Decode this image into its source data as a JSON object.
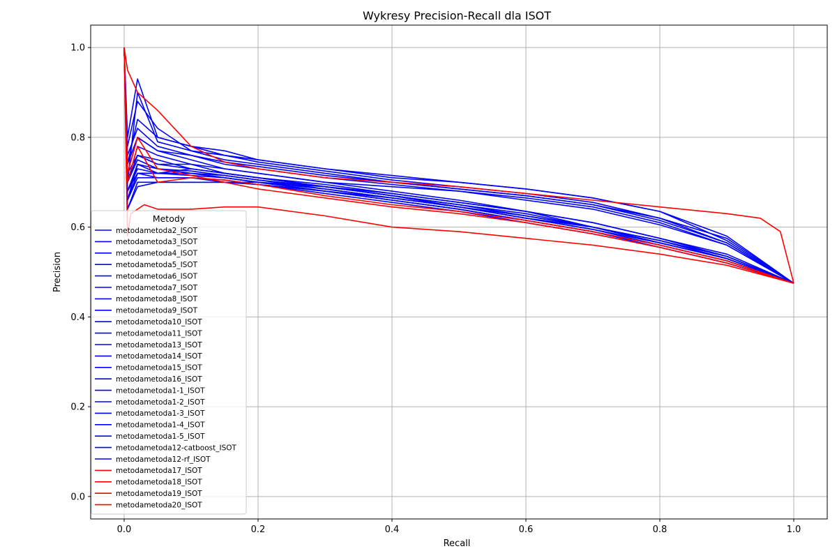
{
  "chart_data": {
    "type": "line",
    "title": "Wykresy Precision-Recall dla ISOT",
    "xlabel": "Recall",
    "ylabel": "Precision",
    "xlim": [
      -0.05,
      1.05
    ],
    "ylim": [
      -0.05,
      1.05
    ],
    "xticks": [
      0.0,
      0.2,
      0.4,
      0.6,
      0.8,
      1.0
    ],
    "yticks": [
      0.0,
      0.2,
      0.4,
      0.6,
      0.8,
      1.0
    ],
    "xtick_labels": [
      "0.0",
      "0.2",
      "0.4",
      "0.6",
      "0.8",
      "1.0"
    ],
    "ytick_labels": [
      "0.0",
      "0.2",
      "0.4",
      "0.6",
      "0.8",
      "1.0"
    ],
    "grid": true,
    "legend_title": "Metody",
    "legend_location": "lower left",
    "colors": {
      "blue": "#0000ff",
      "red": "#ff0000",
      "grid": "#b0b0b0"
    },
    "series": [
      {
        "name": "metodametoda2_ISOT",
        "color": "blue",
        "x": [
          0,
          0.005,
          0.02,
          0.05,
          0.1,
          0.15,
          0.2,
          0.3,
          0.4,
          0.5,
          0.6,
          0.7,
          0.8,
          0.9,
          1.0
        ],
        "y": [
          1.0,
          0.7,
          0.78,
          0.76,
          0.74,
          0.72,
          0.71,
          0.69,
          0.67,
          0.65,
          0.63,
          0.6,
          0.57,
          0.53,
          0.475
        ]
      },
      {
        "name": "metodametoda3_ISOT",
        "color": "blue",
        "x": [
          0,
          0.005,
          0.02,
          0.05,
          0.1,
          0.15,
          0.2,
          0.3,
          0.4,
          0.5,
          0.6,
          0.7,
          0.8,
          0.9,
          1.0
        ],
        "y": [
          1.0,
          0.66,
          0.74,
          0.72,
          0.73,
          0.72,
          0.71,
          0.69,
          0.67,
          0.645,
          0.62,
          0.6,
          0.565,
          0.53,
          0.475
        ]
      },
      {
        "name": "metodametoda4_ISOT",
        "color": "blue",
        "x": [
          0,
          0.005,
          0.02,
          0.05,
          0.1,
          0.15,
          0.2,
          0.3,
          0.4,
          0.5,
          0.6,
          0.7,
          0.8,
          0.9,
          1.0
        ],
        "y": [
          1.0,
          0.72,
          0.8,
          0.77,
          0.75,
          0.73,
          0.72,
          0.7,
          0.68,
          0.66,
          0.635,
          0.6,
          0.57,
          0.535,
          0.475
        ]
      },
      {
        "name": "metodametoda5_ISOT",
        "color": "blue",
        "x": [
          0,
          0.005,
          0.02,
          0.05,
          0.1,
          0.15,
          0.2,
          0.3,
          0.4,
          0.5,
          0.6,
          0.7,
          0.8,
          0.9,
          1.0
        ],
        "y": [
          1.0,
          0.68,
          0.72,
          0.71,
          0.71,
          0.7,
          0.7,
          0.68,
          0.665,
          0.645,
          0.62,
          0.595,
          0.565,
          0.53,
          0.475
        ]
      },
      {
        "name": "metodametoda6_ISOT",
        "color": "blue",
        "x": [
          0,
          0.005,
          0.02,
          0.05,
          0.1,
          0.15,
          0.2,
          0.3,
          0.4,
          0.5,
          0.6,
          0.7,
          0.8,
          0.9,
          1.0
        ],
        "y": [
          1.0,
          0.74,
          0.84,
          0.8,
          0.78,
          0.76,
          0.75,
          0.73,
          0.71,
          0.7,
          0.685,
          0.665,
          0.635,
          0.57,
          0.475
        ]
      },
      {
        "name": "metodametoda7_ISOT",
        "color": "blue",
        "x": [
          0,
          0.005,
          0.02,
          0.05,
          0.1,
          0.15,
          0.2,
          0.3,
          0.4,
          0.5,
          0.6,
          0.7,
          0.8,
          0.9,
          1.0
        ],
        "y": [
          1.0,
          0.7,
          0.76,
          0.74,
          0.74,
          0.73,
          0.72,
          0.7,
          0.69,
          0.68,
          0.665,
          0.645,
          0.61,
          0.56,
          0.475
        ]
      },
      {
        "name": "metodametoda8_ISOT",
        "color": "blue",
        "x": [
          0,
          0.005,
          0.02,
          0.05,
          0.1,
          0.15,
          0.2,
          0.3,
          0.4,
          0.5,
          0.6,
          0.7,
          0.8,
          0.9,
          1.0
        ],
        "y": [
          1.0,
          0.78,
          0.88,
          0.82,
          0.77,
          0.75,
          0.74,
          0.72,
          0.7,
          0.685,
          0.67,
          0.65,
          0.62,
          0.575,
          0.475
        ]
      },
      {
        "name": "metodametoda9_ISOT",
        "color": "blue",
        "x": [
          0,
          0.005,
          0.02,
          0.05,
          0.1,
          0.15,
          0.2,
          0.3,
          0.4,
          0.5,
          0.6,
          0.7,
          0.8,
          0.9,
          1.0
        ],
        "y": [
          1.0,
          0.68,
          0.74,
          0.73,
          0.72,
          0.71,
          0.7,
          0.69,
          0.67,
          0.65,
          0.625,
          0.6,
          0.57,
          0.535,
          0.475
        ]
      },
      {
        "name": "metodametoda10_ISOT",
        "color": "blue",
        "x": [
          0,
          0.005,
          0.02,
          0.05,
          0.1,
          0.15,
          0.2,
          0.3,
          0.4,
          0.5,
          0.6,
          0.7,
          0.8,
          0.9,
          1.0
        ],
        "y": [
          1.0,
          0.64,
          0.7,
          0.7,
          0.7,
          0.7,
          0.695,
          0.68,
          0.66,
          0.64,
          0.615,
          0.59,
          0.56,
          0.525,
          0.475
        ]
      },
      {
        "name": "metodametoda11_ISOT",
        "color": "blue",
        "x": [
          0,
          0.005,
          0.02,
          0.05,
          0.1,
          0.15,
          0.2,
          0.3,
          0.4,
          0.5,
          0.6,
          0.7,
          0.8,
          0.9,
          1.0
        ],
        "y": [
          1.0,
          0.76,
          0.82,
          0.78,
          0.76,
          0.74,
          0.73,
          0.71,
          0.695,
          0.68,
          0.66,
          0.64,
          0.605,
          0.56,
          0.475
        ]
      },
      {
        "name": "metodametoda13_ISOT",
        "color": "blue",
        "x": [
          0,
          0.005,
          0.02,
          0.05,
          0.1,
          0.15,
          0.2,
          0.3,
          0.4,
          0.5,
          0.6,
          0.7,
          0.8,
          0.9,
          1.0
        ],
        "y": [
          1.0,
          0.7,
          0.9,
          0.79,
          0.77,
          0.76,
          0.745,
          0.725,
          0.705,
          0.69,
          0.675,
          0.655,
          0.62,
          0.565,
          0.475
        ]
      },
      {
        "name": "metodametoda14_ISOT",
        "color": "blue",
        "x": [
          0,
          0.005,
          0.02,
          0.05,
          0.1,
          0.15,
          0.2,
          0.3,
          0.4,
          0.5,
          0.6,
          0.7,
          0.8,
          0.9,
          1.0
        ],
        "y": [
          1.0,
          0.72,
          0.76,
          0.75,
          0.73,
          0.72,
          0.71,
          0.69,
          0.675,
          0.655,
          0.635,
          0.61,
          0.575,
          0.535,
          0.475
        ]
      },
      {
        "name": "metodametoda15_ISOT",
        "color": "blue",
        "x": [
          0,
          0.005,
          0.02,
          0.05,
          0.1,
          0.15,
          0.2,
          0.3,
          0.4,
          0.5,
          0.6,
          0.7,
          0.8,
          0.9,
          1.0
        ],
        "y": [
          1.0,
          0.66,
          0.72,
          0.72,
          0.72,
          0.715,
          0.705,
          0.685,
          0.665,
          0.645,
          0.625,
          0.6,
          0.565,
          0.53,
          0.475
        ]
      },
      {
        "name": "metodametoda16_ISOT",
        "color": "blue",
        "x": [
          0,
          0.005,
          0.02,
          0.05,
          0.1,
          0.15,
          0.2,
          0.3,
          0.4,
          0.5,
          0.6,
          0.7,
          0.8,
          0.9,
          1.0
        ],
        "y": [
          1.0,
          0.74,
          0.8,
          0.77,
          0.76,
          0.745,
          0.735,
          0.715,
          0.7,
          0.685,
          0.67,
          0.65,
          0.615,
          0.565,
          0.475
        ]
      },
      {
        "name": "metodametoda1-1_ISOT",
        "color": "blue",
        "x": [
          0,
          0.005,
          0.02,
          0.05,
          0.1,
          0.15,
          0.2,
          0.3,
          0.4,
          0.5,
          0.6,
          0.7,
          0.8,
          0.9,
          1.0
        ],
        "y": [
          1.0,
          0.64,
          0.69,
          0.7,
          0.7,
          0.7,
          0.695,
          0.675,
          0.655,
          0.635,
          0.61,
          0.585,
          0.555,
          0.52,
          0.475
        ]
      },
      {
        "name": "metodametoda1-2_ISOT",
        "color": "blue",
        "x": [
          0,
          0.005,
          0.02,
          0.05,
          0.1,
          0.15,
          0.2,
          0.3,
          0.4,
          0.5,
          0.6,
          0.7,
          0.8,
          0.9,
          1.0
        ],
        "y": [
          1.0,
          0.66,
          0.72,
          0.72,
          0.715,
          0.71,
          0.7,
          0.68,
          0.66,
          0.64,
          0.615,
          0.59,
          0.56,
          0.525,
          0.475
        ]
      },
      {
        "name": "metodametoda1-3_ISOT",
        "color": "blue",
        "x": [
          0,
          0.005,
          0.02,
          0.05,
          0.1,
          0.15,
          0.2,
          0.3,
          0.4,
          0.5,
          0.6,
          0.7,
          0.8,
          0.9,
          1.0
        ],
        "y": [
          1.0,
          0.68,
          0.73,
          0.72,
          0.72,
          0.71,
          0.7,
          0.685,
          0.665,
          0.645,
          0.62,
          0.595,
          0.56,
          0.525,
          0.475
        ]
      },
      {
        "name": "metodametoda1-4_ISOT",
        "color": "blue",
        "x": [
          0,
          0.005,
          0.02,
          0.05,
          0.1,
          0.15,
          0.2,
          0.3,
          0.4,
          0.5,
          0.6,
          0.7,
          0.8,
          0.9,
          1.0
        ],
        "y": [
          1.0,
          0.7,
          0.75,
          0.73,
          0.725,
          0.715,
          0.705,
          0.69,
          0.67,
          0.65,
          0.625,
          0.6,
          0.565,
          0.53,
          0.475
        ]
      },
      {
        "name": "metodametoda1-5_ISOT",
        "color": "blue",
        "x": [
          0,
          0.005,
          0.02,
          0.05,
          0.1,
          0.15,
          0.2,
          0.3,
          0.4,
          0.5,
          0.6,
          0.7,
          0.8,
          0.9,
          1.0
        ],
        "y": [
          1.0,
          0.66,
          0.71,
          0.71,
          0.71,
          0.705,
          0.695,
          0.68,
          0.66,
          0.64,
          0.615,
          0.59,
          0.555,
          0.52,
          0.475
        ]
      },
      {
        "name": "metodametoda12-catboost_ISOT",
        "color": "blue",
        "x": [
          0,
          0.005,
          0.02,
          0.05,
          0.1,
          0.15,
          0.2,
          0.3,
          0.4,
          0.5,
          0.6,
          0.7,
          0.8,
          0.9,
          1.0
        ],
        "y": [
          1.0,
          0.8,
          0.93,
          0.8,
          0.78,
          0.77,
          0.75,
          0.73,
          0.715,
          0.7,
          0.685,
          0.665,
          0.635,
          0.58,
          0.475
        ]
      },
      {
        "name": "metodametoda12-rf_ISOT",
        "color": "blue",
        "x": [
          0,
          0.005,
          0.02,
          0.05,
          0.1,
          0.15,
          0.2,
          0.3,
          0.4,
          0.5,
          0.6,
          0.7,
          0.8,
          0.9,
          1.0
        ],
        "y": [
          1.0,
          0.7,
          0.76,
          0.74,
          0.73,
          0.72,
          0.71,
          0.695,
          0.675,
          0.655,
          0.635,
          0.61,
          0.575,
          0.54,
          0.475
        ]
      },
      {
        "name": "metodametoda17_ISOT",
        "color": "red",
        "x": [
          0,
          0.005,
          0.02,
          0.05,
          0.1,
          0.15,
          0.2,
          0.3,
          0.4,
          0.5,
          0.6,
          0.7,
          0.8,
          0.9,
          0.95,
          0.98,
          1.0
        ],
        "y": [
          1.0,
          0.95,
          0.9,
          0.86,
          0.78,
          0.745,
          0.73,
          0.71,
          0.7,
          0.69,
          0.675,
          0.66,
          0.645,
          0.63,
          0.62,
          0.59,
          0.475
        ]
      },
      {
        "name": "metodametoda18_ISOT",
        "color": "red",
        "x": [
          0,
          0.005,
          0.01,
          0.03,
          0.05,
          0.1,
          0.15,
          0.2,
          0.3,
          0.4,
          0.5,
          0.6,
          0.7,
          0.8,
          0.9,
          1.0
        ],
        "y": [
          1.0,
          0.58,
          0.63,
          0.65,
          0.64,
          0.64,
          0.645,
          0.645,
          0.625,
          0.6,
          0.59,
          0.575,
          0.56,
          0.54,
          0.515,
          0.475
        ]
      },
      {
        "name": "metodametoda19_ISOT",
        "color": "red",
        "x": [
          0,
          0.005,
          0.02,
          0.05,
          0.1,
          0.15,
          0.2,
          0.3,
          0.4,
          0.5,
          0.6,
          0.7,
          0.8,
          0.9,
          1.0
        ],
        "y": [
          1.0,
          0.7,
          0.78,
          0.7,
          0.71,
          0.705,
          0.695,
          0.67,
          0.65,
          0.635,
          0.615,
          0.59,
          0.56,
          0.525,
          0.475
        ]
      },
      {
        "name": "metodametoda20_ISOT",
        "color": "red",
        "x": [
          0,
          0.005,
          0.02,
          0.05,
          0.1,
          0.15,
          0.2,
          0.3,
          0.4,
          0.5,
          0.6,
          0.7,
          0.8,
          0.9,
          1.0
        ],
        "y": [
          1.0,
          0.72,
          0.8,
          0.73,
          0.715,
          0.7,
          0.685,
          0.665,
          0.645,
          0.63,
          0.61,
          0.585,
          0.555,
          0.52,
          0.475
        ]
      }
    ]
  }
}
